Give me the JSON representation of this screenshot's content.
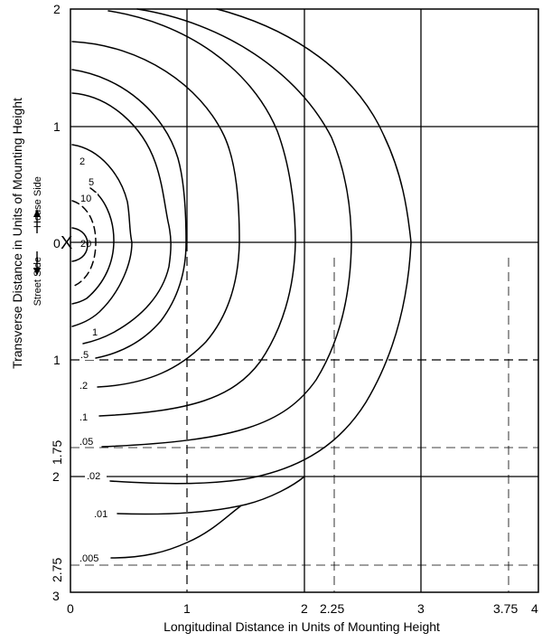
{
  "diagram": {
    "x_axis": {
      "title": "Longitudinal Distance in Units of Mounting Height",
      "ticks": [
        "0",
        "1",
        "2",
        "2.25",
        "3",
        "3.75",
        "4"
      ]
    },
    "y_axis": {
      "title": "Transverse Distance in Units of Mounting Height",
      "ticks_house": [
        "2",
        "1",
        "0"
      ],
      "ticks_street": [
        "1",
        "1.75",
        "2",
        "2.75",
        "3"
      ]
    },
    "side_labels": {
      "house": "House Side",
      "street": "Street Side"
    },
    "isolux_labels": [
      "20",
      "10",
      "5",
      "2",
      "1",
      ".5",
      ".2",
      ".1",
      ".05",
      ".02",
      ".01",
      ".005"
    ],
    "luminaire_marker": "X"
  }
}
